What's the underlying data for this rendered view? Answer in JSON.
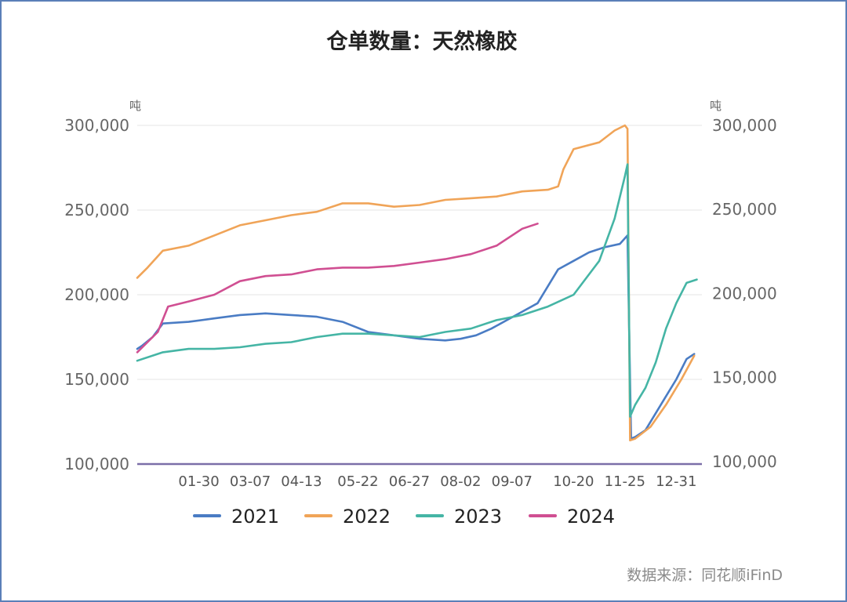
{
  "chart_data": {
    "type": "line",
    "title": "仓单数量：天然橡胶",
    "unit_left": "吨",
    "unit_right": "吨",
    "ylim": [
      100000,
      300000
    ],
    "y_ticks": [
      100000,
      150000,
      200000,
      250000,
      300000
    ],
    "y_tick_labels": [
      "100,000",
      "150,000",
      "200,000",
      "250,000",
      "300,000"
    ],
    "x_tick_labels": [
      "01-30",
      "03-07",
      "04-13",
      "05-22",
      "06-27",
      "08-02",
      "09-07",
      "10-20",
      "11-25",
      "12-31"
    ],
    "x_tick_pos": [
      1.2,
      2.2,
      3.2,
      4.3,
      5.3,
      6.3,
      7.3,
      8.5,
      9.5,
      10.5
    ],
    "xlim": [
      0,
      11
    ],
    "grid": true,
    "legend_position": "bottom",
    "source": "数据来源：同花顺iFinD",
    "colors": {
      "2021": "#4a7cc4",
      "2022": "#f0a458",
      "2023": "#45b5a5",
      "2024": "#d04f92",
      "zero_line": "#7b6fa8",
      "grid": "#e6e6e6"
    },
    "series": [
      {
        "name": "2021",
        "x": [
          0,
          0.1,
          0.3,
          0.5,
          1.0,
          1.5,
          2.0,
          2.5,
          3.0,
          3.5,
          4.0,
          4.5,
          5.0,
          5.5,
          6.0,
          6.3,
          6.6,
          6.9,
          7.2,
          7.5,
          7.8,
          8.0,
          8.2,
          8.5,
          8.8,
          9.1,
          9.4,
          9.55,
          9.62,
          9.7,
          9.9,
          10.2,
          10.5,
          10.7,
          10.85
        ],
        "y": [
          168000,
          170000,
          175000,
          183000,
          184000,
          186000,
          188000,
          189000,
          188000,
          187000,
          184000,
          178000,
          176000,
          174000,
          173000,
          174000,
          176000,
          180000,
          185000,
          190000,
          195000,
          205000,
          215000,
          220000,
          225000,
          228000,
          230000,
          235000,
          115000,
          116000,
          120000,
          135000,
          150000,
          162000,
          165000
        ]
      },
      {
        "name": "2022",
        "x": [
          0,
          0.2,
          0.5,
          1.0,
          1.5,
          2.0,
          2.5,
          3.0,
          3.5,
          4.0,
          4.5,
          5.0,
          5.5,
          6.0,
          6.5,
          7.0,
          7.5,
          8.0,
          8.2,
          8.3,
          8.5,
          9.0,
          9.3,
          9.5,
          9.55,
          9.6,
          9.7,
          10.0,
          10.3,
          10.6,
          10.85
        ],
        "y": [
          210000,
          216000,
          226000,
          229000,
          235000,
          241000,
          244000,
          247000,
          249000,
          254000,
          254000,
          252000,
          253000,
          256000,
          257000,
          258000,
          261000,
          262000,
          264000,
          274000,
          286000,
          290000,
          297000,
          300000,
          298000,
          114000,
          115000,
          122000,
          135000,
          150000,
          164000
        ]
      },
      {
        "name": "2023",
        "x": [
          0,
          0.5,
          1.0,
          1.5,
          2.0,
          2.5,
          3.0,
          3.5,
          4.0,
          4.5,
          5.0,
          5.5,
          6.0,
          6.5,
          7.0,
          7.5,
          8.0,
          8.5,
          9.0,
          9.3,
          9.5,
          9.55,
          9.6,
          9.7,
          9.9,
          10.1,
          10.3,
          10.5,
          10.7,
          10.9
        ],
        "y": [
          161000,
          166000,
          168000,
          168000,
          169000,
          171000,
          172000,
          175000,
          177000,
          177000,
          176000,
          175000,
          178000,
          180000,
          185000,
          188000,
          193000,
          200000,
          220000,
          245000,
          270000,
          277000,
          128000,
          135000,
          145000,
          160000,
          180000,
          195000,
          207000,
          209000
        ]
      },
      {
        "name": "2024",
        "x": [
          0,
          0.2,
          0.4,
          0.6,
          1.0,
          1.5,
          2.0,
          2.5,
          3.0,
          3.5,
          4.0,
          4.5,
          5.0,
          5.5,
          6.0,
          6.5,
          7.0,
          7.5,
          7.8
        ],
        "y": [
          166000,
          172000,
          178000,
          193000,
          196000,
          200000,
          208000,
          211000,
          212000,
          215000,
          216000,
          216000,
          217000,
          219000,
          221000,
          224000,
          229000,
          239000,
          242000
        ]
      }
    ]
  }
}
